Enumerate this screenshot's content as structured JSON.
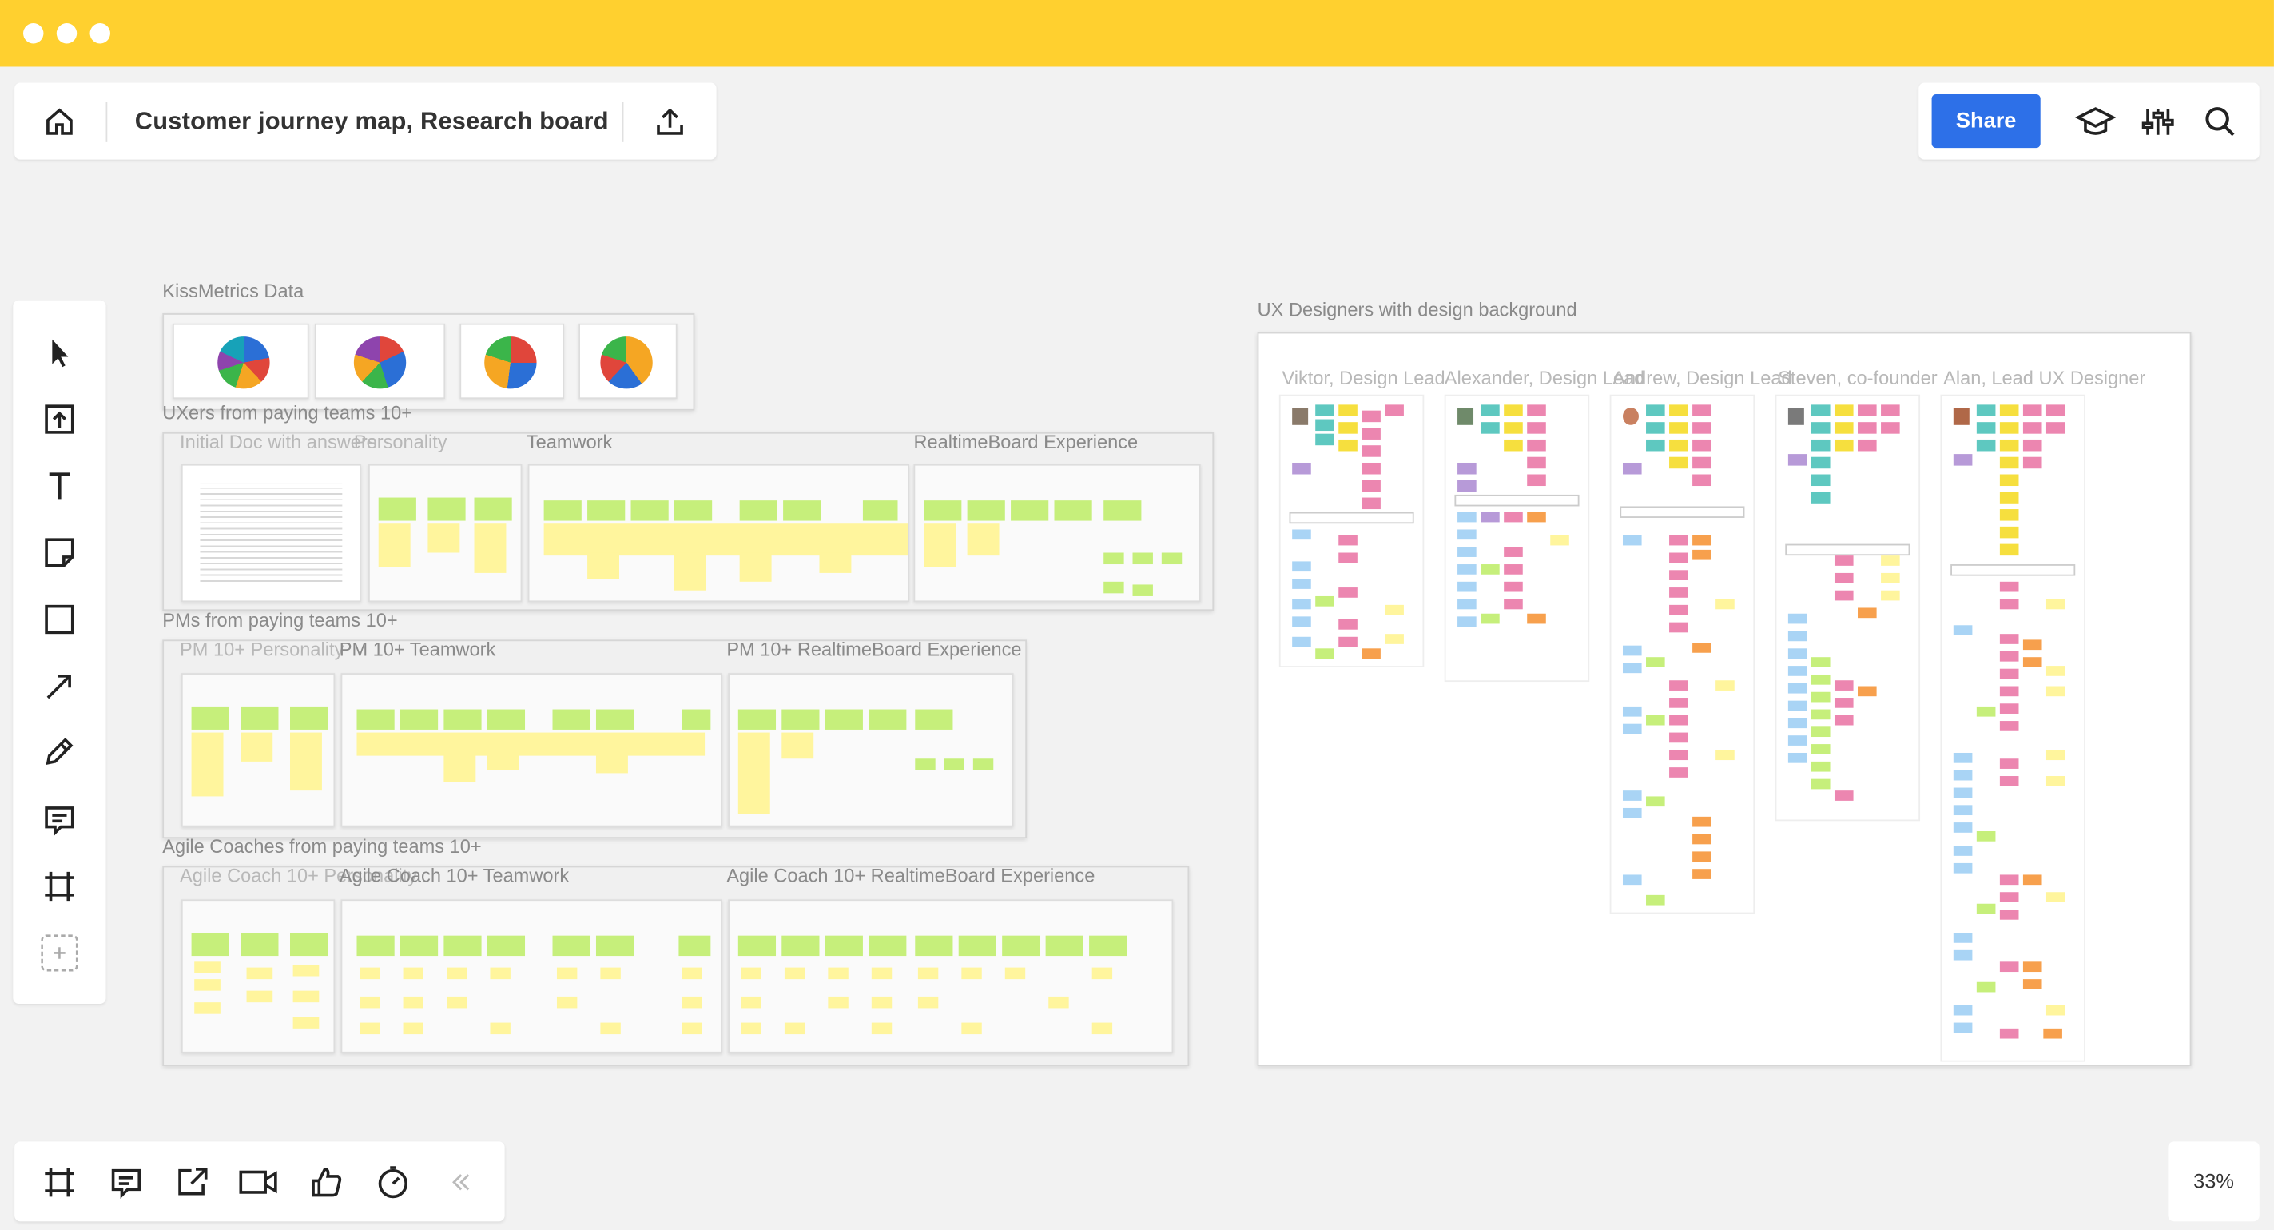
{
  "window": {
    "title": "Customer journey map, Research board"
  },
  "toolbar": {
    "share_label": "Share"
  },
  "zoom": "33%",
  "board": {
    "kissmetrics": {
      "label": "KissMetrics Data"
    },
    "uxers": {
      "label": "UXers from paying teams 10+",
      "sub": [
        "Initial Doc with answers",
        "Personality",
        "Teamwork",
        "RealtimeBoard Experience"
      ]
    },
    "pms": {
      "label": "PMs from paying teams 10+",
      "sub": [
        "PM 10+ Personality",
        "PM 10+ Teamwork",
        "PM 10+ RealtimeBoard Experience"
      ]
    },
    "agile": {
      "label": "Agile Coaches from paying teams 10+",
      "sub": [
        "Agile Coach 10+ Personality",
        "Agile Coach 10+ Teamwork",
        "Agile Coach 10+ RealtimeBoard Experience"
      ]
    },
    "ux_designers": {
      "label": "UX Designers with design background",
      "people": [
        "Viktor, Design Lead",
        "Alexander, Design Lead",
        "Andrew, Design Lead",
        "Steven, co-founder",
        "Alan, Lead UX Designer"
      ]
    }
  },
  "icons": {
    "left_toolbar": [
      "select-icon",
      "upload-icon",
      "text-icon",
      "sticky-note-icon",
      "shape-icon",
      "arrow-icon",
      "pen-icon",
      "comment-icon",
      "frame-icon",
      "add-icon"
    ],
    "top_right": [
      "learn-icon",
      "settings-icon",
      "search-icon"
    ],
    "bottom": [
      "frames-icon",
      "comments-icon",
      "share-screen-icon",
      "video-icon",
      "vote-icon",
      "timer-icon",
      "collapse-icon"
    ]
  },
  "colors": {
    "titlebar": "#ffd02f",
    "accent": "#2d70e8",
    "canvas": "#f2f2f2"
  }
}
